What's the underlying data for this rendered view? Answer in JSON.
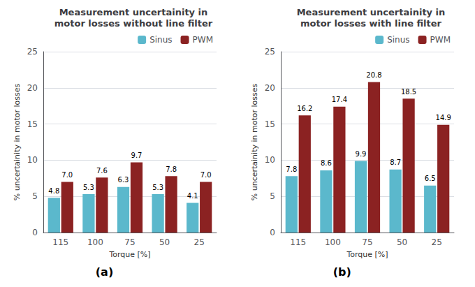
{
  "chart_data": [
    {
      "type": "bar",
      "title": "Measurement uncertainity in\nmotor losses without line filter",
      "categories": [
        "115",
        "100",
        "75",
        "50",
        "25"
      ],
      "series": [
        {
          "name": "Sinus",
          "color": "#5BB8CC",
          "values": [
            4.8,
            5.3,
            6.3,
            5.3,
            4.1
          ],
          "value_labels": [
            "4.8",
            "5.3",
            "6.3",
            "5.3",
            "4.1"
          ]
        },
        {
          "name": "PWM",
          "color": "#8B2222",
          "values": [
            7.0,
            7.6,
            9.7,
            7.8,
            7.0
          ],
          "value_labels": [
            "7.0",
            "7.6",
            "9.7",
            "7.8",
            "7.0"
          ]
        }
      ],
      "xlabel": "Torque [%]",
      "ylabel": "% uncertainity in motor losses",
      "ylim": [
        0,
        25
      ],
      "yticks": [
        0,
        5,
        10,
        15,
        20,
        25
      ],
      "grid": true,
      "legend": "upper right",
      "data_labels": true,
      "annotations": [
        "(a)"
      ]
    },
    {
      "type": "bar",
      "title": "Measurement uncertainity in\nmotor losses with line filter",
      "categories": [
        "115",
        "100",
        "75",
        "50",
        "25"
      ],
      "series": [
        {
          "name": "Sinus",
          "color": "#5BB8CC",
          "values": [
            7.8,
            8.6,
            9.9,
            8.7,
            6.5
          ],
          "value_labels": [
            "7.8",
            "8.6",
            "9.9",
            "8.7",
            "6.5"
          ]
        },
        {
          "name": "PWM",
          "color": "#8B2222",
          "values": [
            16.2,
            17.4,
            20.8,
            18.5,
            14.9
          ],
          "value_labels": [
            "16.2",
            "17.4",
            "20.8",
            "18.5",
            "14.9"
          ]
        }
      ],
      "xlabel": "Torque [%]",
      "ylabel": "% uncertainity in motor losses",
      "ylim": [
        0,
        25
      ],
      "yticks": [
        0,
        5,
        10,
        15,
        20,
        25
      ],
      "grid": true,
      "legend": "upper right",
      "data_labels": true,
      "annotations": [
        "(b)"
      ]
    }
  ]
}
